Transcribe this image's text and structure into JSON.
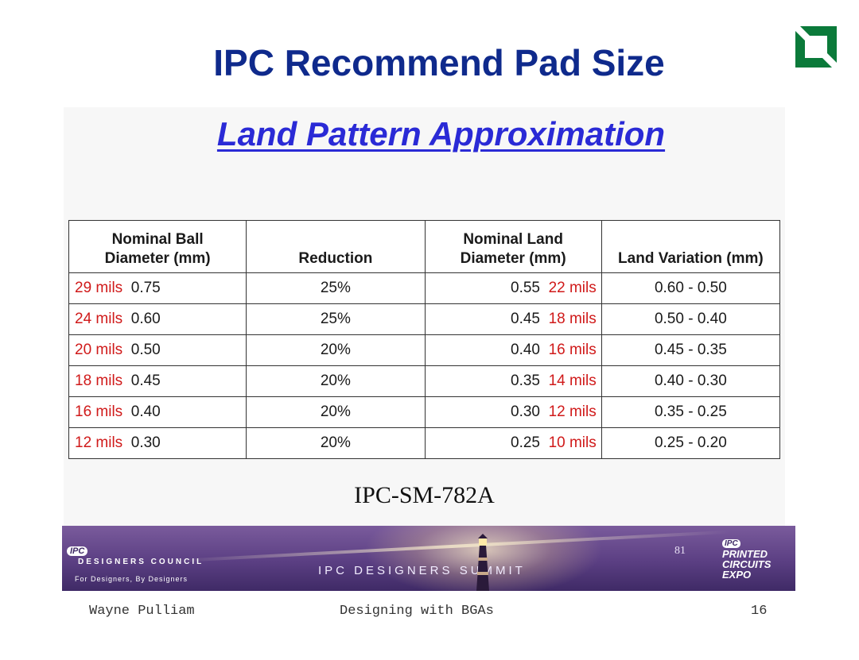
{
  "slide": {
    "title": "IPC Recommend Pad Size",
    "subtitle": "Land Pattern Approximation",
    "source": "IPC-SM-782A"
  },
  "table": {
    "headers": [
      "Nominal Ball\nDiameter (mm)",
      "Reduction",
      "Nominal Land\nDiameter (mm)",
      "Land Variation (mm)"
    ],
    "rows": [
      {
        "ball_mils": "29 mils",
        "ball_mm": "0.75",
        "reduction": "25%",
        "land_mm": "0.55",
        "land_mils": "22 mils",
        "variation": "0.60 - 0.50"
      },
      {
        "ball_mils": "24 mils",
        "ball_mm": "0.60",
        "reduction": "25%",
        "land_mm": "0.45",
        "land_mils": "18 mils",
        "variation": "0.50 - 0.40"
      },
      {
        "ball_mils": "20 mils",
        "ball_mm": "0.50",
        "reduction": "20%",
        "land_mm": "0.40",
        "land_mils": "16 mils",
        "variation": "0.45 - 0.35"
      },
      {
        "ball_mils": "18 mils",
        "ball_mm": "0.45",
        "reduction": "20%",
        "land_mm": "0.35",
        "land_mils": "14 mils",
        "variation": "0.40 - 0.30"
      },
      {
        "ball_mils": "16 mils",
        "ball_mm": "0.40",
        "reduction": "20%",
        "land_mm": "0.30",
        "land_mils": "12 mils",
        "variation": "0.35 - 0.25"
      },
      {
        "ball_mils": "12 mils",
        "ball_mm": "0.30",
        "reduction": "20%",
        "land_mm": "0.25",
        "land_mils": "10 mils",
        "variation": "0.25 - 0.20"
      }
    ]
  },
  "banner": {
    "council_ipc": "IPC",
    "council_name": "DESIGNERS COUNCIL",
    "council_tagline": "For Designers, By Designers",
    "summit": "IPC DESIGNERS SUMMIT",
    "page_number": "81",
    "expo_ipc": "IPC",
    "expo_lines": [
      "PRINTED",
      "CIRCUITS",
      "EXPO"
    ]
  },
  "footer": {
    "author": "Wayne Pulliam",
    "topic": "Designing with BGAs",
    "page": "16"
  },
  "colors": {
    "title": "#0f2a8c",
    "subtitle": "#2a2ad6",
    "mils_red": "#d01a1a",
    "logo_green": "#0b7a3a",
    "banner_purple": "#5b3f83"
  }
}
